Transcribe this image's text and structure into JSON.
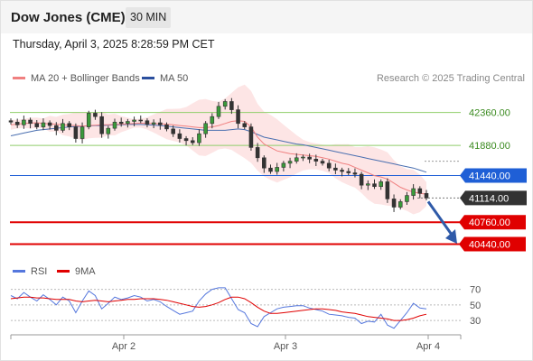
{
  "header": {
    "title": "Dow Jones (CME)",
    "interval": "30 MIN",
    "datetime": "Thursday, April 3, 2025 8:28:59 PM CET"
  },
  "legend": {
    "ma20_label": "MA 20 + Bollinger Bands",
    "ma50_label": "MA 50",
    "credit": "Research © 2025 Trading Central"
  },
  "rsi_legend": {
    "rsi_label": "RSI",
    "ma_label": "9MA"
  },
  "colors": {
    "ma20": "#f08080",
    "ma50": "#4a6fb0",
    "bollinger_fill": "#fde0e0",
    "green_level": "#8fce6a",
    "blue_level": "#1f5fd6",
    "red_level": "#e00000",
    "current_price_bg": "#333333",
    "rsi": "#5577dd",
    "rsi_ma": "#e00000",
    "arrow": "#2f5aa8"
  },
  "chart_data": [
    {
      "type": "candlestick",
      "price_axis_range": [
        40250,
        42750
      ],
      "x_labels": [
        "Apr 2",
        "Apr 3",
        "Apr 4"
      ],
      "levels": [
        {
          "value": 42360,
          "label": "42360.00",
          "kind": "resistance"
        },
        {
          "value": 41880,
          "label": "41880.00",
          "kind": "resistance"
        },
        {
          "value": 41440,
          "label": "41440.00",
          "kind": "pivot"
        },
        {
          "value": 41114,
          "label": "41114.00",
          "kind": "current"
        },
        {
          "value": 40760,
          "label": "40760.00",
          "kind": "support"
        },
        {
          "value": 40440,
          "label": "40440.00",
          "kind": "support"
        }
      ],
      "trend_arrow": {
        "from": 41114,
        "to": 40500,
        "direction": "down"
      },
      "close_series": [
        42220,
        42180,
        42250,
        42200,
        42150,
        42210,
        42170,
        42100,
        42200,
        42150,
        41980,
        42150,
        42350,
        42300,
        42050,
        42130,
        42220,
        42200,
        42230,
        42250,
        42240,
        42190,
        42210,
        42180,
        42120,
        42050,
        41980,
        41950,
        41920,
        42050,
        42200,
        42300,
        42450,
        42520,
        42400,
        42200,
        42150,
        41850,
        41700,
        41550,
        41500,
        41560,
        41620,
        41650,
        41700,
        41710,
        41680,
        41650,
        41620,
        41550,
        41520,
        41500,
        41480,
        41460,
        41300,
        41320,
        41280,
        41350,
        41100,
        40980,
        41060,
        41150,
        41250,
        41180,
        41114
      ],
      "ma20_series": [
        42180,
        42190,
        42200,
        42205,
        42210,
        42200,
        42195,
        42190,
        42180,
        42175,
        42170,
        42160,
        42170,
        42175,
        42180,
        42180,
        42185,
        42190,
        42195,
        42200,
        42205,
        42200,
        42200,
        42195,
        42190,
        42180,
        42170,
        42160,
        42150,
        42140,
        42140,
        42150,
        42170,
        42200,
        42230,
        42240,
        42230,
        42150,
        42000,
        41900,
        41850,
        41800,
        41780,
        41760,
        41750,
        41740,
        41730,
        41720,
        41700,
        41680,
        41650,
        41620,
        41600,
        41560,
        41520,
        41480,
        41440,
        41420,
        41390,
        41330,
        41270,
        41230,
        41200,
        41180,
        41170
      ],
      "ma50_series": [
        42020,
        42040,
        42060,
        42080,
        42100,
        42110,
        42120,
        42130,
        42140,
        42150,
        42155,
        42160,
        42165,
        42170,
        42170,
        42175,
        42180,
        42180,
        42185,
        42185,
        42185,
        42180,
        42175,
        42170,
        42160,
        42150,
        42140,
        42130,
        42120,
        42110,
        42100,
        42100,
        42100,
        42100,
        42110,
        42120,
        42110,
        42080,
        42040,
        42000,
        41980,
        41960,
        41940,
        41920,
        41900,
        41890,
        41870,
        41850,
        41830,
        41810,
        41790,
        41770,
        41750,
        41730,
        41710,
        41690,
        41670,
        41650,
        41630,
        41610,
        41590,
        41570,
        41550,
        41520,
        41490
      ]
    },
    {
      "type": "line",
      "name": "RSI",
      "y_ticks": [
        70,
        50,
        30
      ],
      "ylim": [
        15,
        80
      ],
      "rsi_series": [
        62,
        58,
        66,
        60,
        55,
        63,
        57,
        50,
        60,
        55,
        40,
        55,
        68,
        62,
        45,
        52,
        60,
        57,
        59,
        62,
        60,
        55,
        57,
        54,
        48,
        43,
        38,
        40,
        42,
        55,
        64,
        70,
        72,
        72,
        58,
        44,
        40,
        26,
        22,
        35,
        40,
        45,
        47,
        48,
        49,
        49,
        46,
        44,
        42,
        38,
        37,
        36,
        34,
        33,
        26,
        29,
        28,
        38,
        24,
        20,
        30,
        40,
        52,
        46,
        45
      ],
      "rsi_ma_series": [
        58,
        59,
        60,
        60,
        59,
        59,
        58,
        57,
        57,
        57,
        55,
        54,
        55,
        56,
        55,
        54,
        55,
        56,
        57,
        57,
        58,
        58,
        58,
        57,
        56,
        54,
        52,
        50,
        48,
        47,
        48,
        50,
        53,
        57,
        60,
        60,
        58,
        53,
        47,
        42,
        39,
        39,
        40,
        41,
        42,
        43,
        44,
        45,
        45,
        44,
        43,
        41,
        40,
        39,
        37,
        35,
        34,
        33,
        32,
        30,
        30,
        31,
        33,
        36,
        38
      ]
    }
  ]
}
